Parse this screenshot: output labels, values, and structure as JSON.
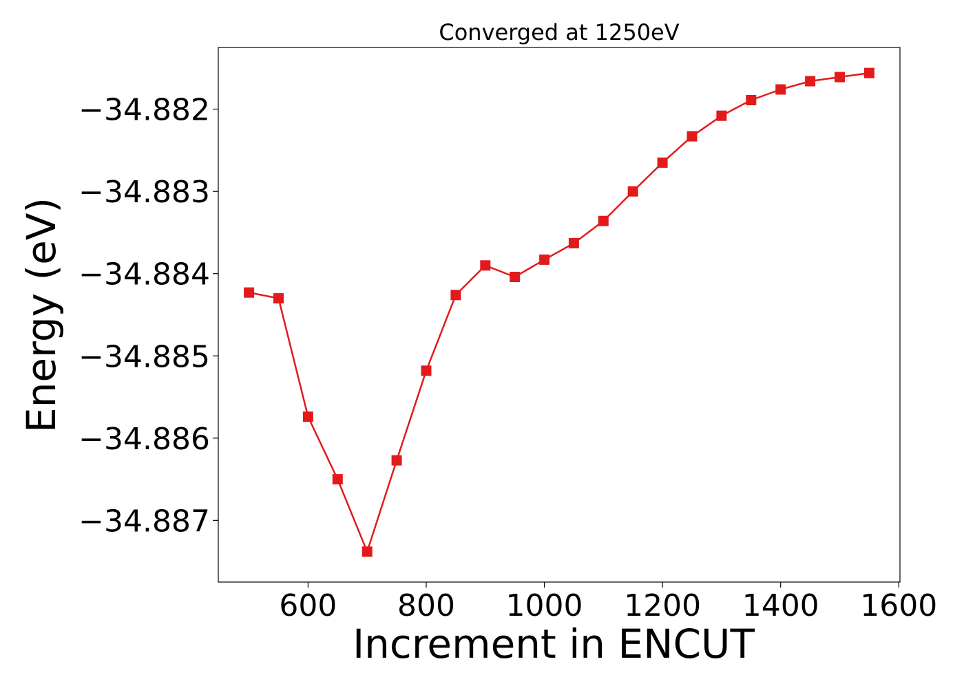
{
  "chart_data": {
    "type": "line",
    "title": "Converged at 1250eV",
    "xlabel": "Increment in ENCUT",
    "ylabel": "Energy (eV)",
    "grid": false,
    "legend": "none",
    "xlim": [
      448,
      1602
    ],
    "ylim": [
      -34.88775,
      -34.88125
    ],
    "xticks": [
      600,
      800,
      1000,
      1200,
      1400,
      1600
    ],
    "yticks": [
      -34.882,
      -34.883,
      -34.884,
      -34.885,
      -34.886,
      -34.887
    ],
    "xtick_labels": [
      "600",
      "800",
      "1000",
      "1200",
      "1400",
      "1600"
    ],
    "ytick_labels": [
      "−34.882",
      "−34.883",
      "−34.884",
      "−34.885",
      "−34.886",
      "−34.887"
    ],
    "series": [
      {
        "color": "#e31a1c",
        "marker": "square",
        "x": [
          500,
          550,
          600,
          650,
          700,
          750,
          800,
          850,
          900,
          950,
          1000,
          1050,
          1100,
          1150,
          1200,
          1250,
          1300,
          1350,
          1400,
          1450,
          1500,
          1550
        ],
        "y": [
          -34.88423,
          -34.8843,
          -34.88574,
          -34.8865,
          -34.88738,
          -34.88627,
          -34.88518,
          -34.88426,
          -34.8839,
          -34.88404,
          -34.88383,
          -34.88363,
          -34.88336,
          -34.883,
          -34.88265,
          -34.88233,
          -34.88208,
          -34.88189,
          -34.88176,
          -34.88166,
          -34.88161,
          -34.88156
        ]
      }
    ]
  }
}
